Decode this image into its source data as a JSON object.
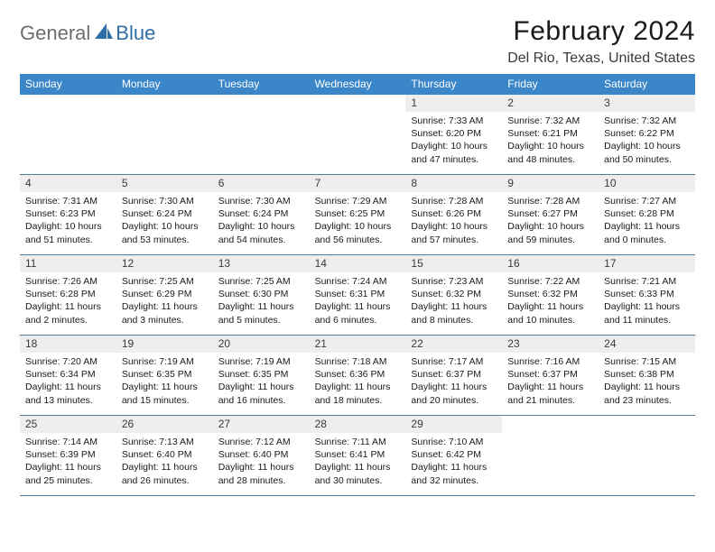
{
  "logo": {
    "general": "General",
    "blue": "Blue"
  },
  "title": "February 2024",
  "location": "Del Rio, Texas, United States",
  "colors": {
    "header_bg": "#3a86c8",
    "header_text": "#ffffff",
    "day_num_bg": "#eeeeee",
    "row_border": "#4a7fa8",
    "logo_gray": "#6d6d6d",
    "logo_blue": "#2f6fa7"
  },
  "weekdays": [
    "Sunday",
    "Monday",
    "Tuesday",
    "Wednesday",
    "Thursday",
    "Friday",
    "Saturday"
  ],
  "weeks": [
    [
      null,
      null,
      null,
      null,
      {
        "n": "1",
        "sr": "7:33 AM",
        "ss": "6:20 PM",
        "dl": "10 hours and 47 minutes."
      },
      {
        "n": "2",
        "sr": "7:32 AM",
        "ss": "6:21 PM",
        "dl": "10 hours and 48 minutes."
      },
      {
        "n": "3",
        "sr": "7:32 AM",
        "ss": "6:22 PM",
        "dl": "10 hours and 50 minutes."
      }
    ],
    [
      {
        "n": "4",
        "sr": "7:31 AM",
        "ss": "6:23 PM",
        "dl": "10 hours and 51 minutes."
      },
      {
        "n": "5",
        "sr": "7:30 AM",
        "ss": "6:24 PM",
        "dl": "10 hours and 53 minutes."
      },
      {
        "n": "6",
        "sr": "7:30 AM",
        "ss": "6:24 PM",
        "dl": "10 hours and 54 minutes."
      },
      {
        "n": "7",
        "sr": "7:29 AM",
        "ss": "6:25 PM",
        "dl": "10 hours and 56 minutes."
      },
      {
        "n": "8",
        "sr": "7:28 AM",
        "ss": "6:26 PM",
        "dl": "10 hours and 57 minutes."
      },
      {
        "n": "9",
        "sr": "7:28 AM",
        "ss": "6:27 PM",
        "dl": "10 hours and 59 minutes."
      },
      {
        "n": "10",
        "sr": "7:27 AM",
        "ss": "6:28 PM",
        "dl": "11 hours and 0 minutes."
      }
    ],
    [
      {
        "n": "11",
        "sr": "7:26 AM",
        "ss": "6:28 PM",
        "dl": "11 hours and 2 minutes."
      },
      {
        "n": "12",
        "sr": "7:25 AM",
        "ss": "6:29 PM",
        "dl": "11 hours and 3 minutes."
      },
      {
        "n": "13",
        "sr": "7:25 AM",
        "ss": "6:30 PM",
        "dl": "11 hours and 5 minutes."
      },
      {
        "n": "14",
        "sr": "7:24 AM",
        "ss": "6:31 PM",
        "dl": "11 hours and 6 minutes."
      },
      {
        "n": "15",
        "sr": "7:23 AM",
        "ss": "6:32 PM",
        "dl": "11 hours and 8 minutes."
      },
      {
        "n": "16",
        "sr": "7:22 AM",
        "ss": "6:32 PM",
        "dl": "11 hours and 10 minutes."
      },
      {
        "n": "17",
        "sr": "7:21 AM",
        "ss": "6:33 PM",
        "dl": "11 hours and 11 minutes."
      }
    ],
    [
      {
        "n": "18",
        "sr": "7:20 AM",
        "ss": "6:34 PM",
        "dl": "11 hours and 13 minutes."
      },
      {
        "n": "19",
        "sr": "7:19 AM",
        "ss": "6:35 PM",
        "dl": "11 hours and 15 minutes."
      },
      {
        "n": "20",
        "sr": "7:19 AM",
        "ss": "6:35 PM",
        "dl": "11 hours and 16 minutes."
      },
      {
        "n": "21",
        "sr": "7:18 AM",
        "ss": "6:36 PM",
        "dl": "11 hours and 18 minutes."
      },
      {
        "n": "22",
        "sr": "7:17 AM",
        "ss": "6:37 PM",
        "dl": "11 hours and 20 minutes."
      },
      {
        "n": "23",
        "sr": "7:16 AM",
        "ss": "6:37 PM",
        "dl": "11 hours and 21 minutes."
      },
      {
        "n": "24",
        "sr": "7:15 AM",
        "ss": "6:38 PM",
        "dl": "11 hours and 23 minutes."
      }
    ],
    [
      {
        "n": "25",
        "sr": "7:14 AM",
        "ss": "6:39 PM",
        "dl": "11 hours and 25 minutes."
      },
      {
        "n": "26",
        "sr": "7:13 AM",
        "ss": "6:40 PM",
        "dl": "11 hours and 26 minutes."
      },
      {
        "n": "27",
        "sr": "7:12 AM",
        "ss": "6:40 PM",
        "dl": "11 hours and 28 minutes."
      },
      {
        "n": "28",
        "sr": "7:11 AM",
        "ss": "6:41 PM",
        "dl": "11 hours and 30 minutes."
      },
      {
        "n": "29",
        "sr": "7:10 AM",
        "ss": "6:42 PM",
        "dl": "11 hours and 32 minutes."
      },
      null,
      null
    ]
  ],
  "labels": {
    "sunrise": "Sunrise:",
    "sunset": "Sunset:",
    "daylight": "Daylight:"
  }
}
